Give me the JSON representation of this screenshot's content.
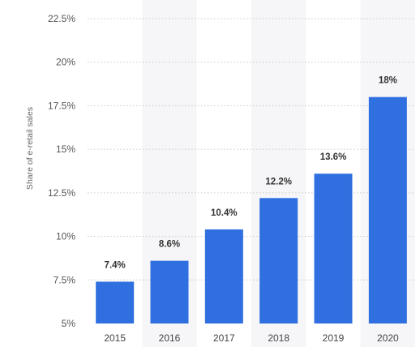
{
  "chart_data": {
    "type": "bar",
    "categories": [
      "2015",
      "2016",
      "2017",
      "2018",
      "2019",
      "2020"
    ],
    "values": [
      7.4,
      8.6,
      10.4,
      12.2,
      13.6,
      18
    ],
    "data_labels": [
      "7.4%",
      "8.6%",
      "10.4%",
      "12.2%",
      "13.6%",
      "18%"
    ],
    "title": "",
    "xlabel": "",
    "ylabel": "Share of e-retail sales",
    "ylim": [
      5,
      22.5
    ],
    "yticks": [
      5,
      7.5,
      10,
      12.5,
      15,
      17.5,
      20,
      22.5
    ],
    "ytick_labels": [
      "5%",
      "7.5%",
      "10%",
      "12.5%",
      "15%",
      "17.5%",
      "20%",
      "22.5%"
    ],
    "grid": true,
    "alternating_column_bands": true,
    "bar_color": "#2f6fdf",
    "band_color": "#f6f6f8",
    "grid_color": "#c9c9c9"
  }
}
